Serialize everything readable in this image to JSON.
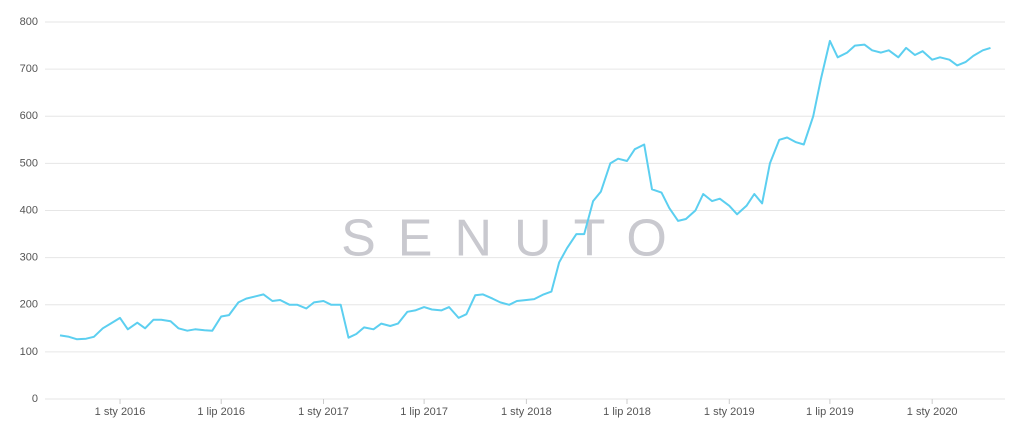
{
  "chart_data": {
    "type": "line",
    "watermark": "SENUTO",
    "x": [
      "2015-09-15",
      "2015-10-01",
      "2015-10-15",
      "2015-11-01",
      "2015-11-15",
      "2015-12-01",
      "2015-12-15",
      "2016-01-01",
      "2016-01-15",
      "2016-02-01",
      "2016-02-15",
      "2016-03-01",
      "2016-03-15",
      "2016-04-01",
      "2016-04-15",
      "2016-05-01",
      "2016-05-15",
      "2016-06-01",
      "2016-06-15",
      "2016-07-01",
      "2016-07-15",
      "2016-08-01",
      "2016-08-15",
      "2016-09-01",
      "2016-09-15",
      "2016-10-01",
      "2016-10-15",
      "2016-11-01",
      "2016-11-15",
      "2016-12-01",
      "2016-12-15",
      "2017-01-01",
      "2017-01-15",
      "2017-02-01",
      "2017-02-15",
      "2017-03-01",
      "2017-03-15",
      "2017-04-01",
      "2017-04-15",
      "2017-05-01",
      "2017-05-15",
      "2017-06-01",
      "2017-06-15",
      "2017-07-01",
      "2017-07-15",
      "2017-08-01",
      "2017-08-15",
      "2017-09-01",
      "2017-09-15",
      "2017-10-01",
      "2017-10-15",
      "2017-11-01",
      "2017-11-15",
      "2017-12-01",
      "2017-12-15",
      "2018-01-01",
      "2018-01-15",
      "2018-02-01",
      "2018-02-15",
      "2018-03-01",
      "2018-03-15",
      "2018-04-01",
      "2018-04-15",
      "2018-05-01",
      "2018-05-15",
      "2018-06-01",
      "2018-06-15",
      "2018-07-01",
      "2018-07-15",
      "2018-08-01",
      "2018-08-15",
      "2018-09-01",
      "2018-09-15",
      "2018-10-01",
      "2018-10-15",
      "2018-11-01",
      "2018-11-15",
      "2018-12-01",
      "2018-12-15",
      "2019-01-01",
      "2019-01-15",
      "2019-02-01",
      "2019-02-15",
      "2019-03-01",
      "2019-03-15",
      "2019-04-01",
      "2019-04-15",
      "2019-05-01",
      "2019-05-15",
      "2019-06-01",
      "2019-06-15",
      "2019-07-01",
      "2019-07-15",
      "2019-08-01",
      "2019-08-15",
      "2019-09-01",
      "2019-09-15",
      "2019-10-01",
      "2019-10-15",
      "2019-11-01",
      "2019-11-15",
      "2019-12-01",
      "2019-12-15",
      "2020-01-01",
      "2020-01-15",
      "2020-02-01",
      "2020-02-15",
      "2020-03-01",
      "2020-03-15",
      "2020-04-01",
      "2020-04-15"
    ],
    "series": [
      {
        "color": "#5ccff0",
        "values": [
          135,
          132,
          127,
          128,
          132,
          150,
          160,
          172,
          148,
          162,
          150,
          168,
          168,
          165,
          150,
          145,
          148,
          146,
          145,
          175,
          178,
          205,
          213,
          218,
          222,
          208,
          210,
          200,
          200,
          192,
          205,
          208,
          200,
          200,
          130,
          138,
          152,
          148,
          160,
          155,
          160,
          185,
          188,
          195,
          190,
          188,
          195,
          172,
          180,
          220,
          222,
          213,
          205,
          200,
          208,
          210,
          212,
          222,
          228,
          290,
          320,
          350,
          350,
          420,
          440,
          500,
          510,
          505,
          530,
          540,
          445,
          438,
          405,
          378,
          382,
          400,
          435,
          420,
          425,
          410,
          392,
          410,
          435,
          415,
          500,
          550,
          555,
          545,
          540,
          600,
          680,
          760,
          725,
          735,
          750,
          752,
          740,
          735,
          740,
          725,
          745,
          730,
          738,
          720,
          725,
          720,
          708,
          715,
          728,
          740,
          745
        ]
      }
    ],
    "xlim": [
      "2015-08-19",
      "2020-05-11"
    ],
    "xticks": [
      {
        "value": "2016-01-01",
        "label": "1 sty 2016"
      },
      {
        "value": "2016-07-01",
        "label": "1 lip 2016"
      },
      {
        "value": "2017-01-01",
        "label": "1 sty 2017"
      },
      {
        "value": "2017-07-01",
        "label": "1 lip 2017"
      },
      {
        "value": "2018-01-01",
        "label": "1 sty 2018"
      },
      {
        "value": "2018-07-01",
        "label": "1 lip 2018"
      },
      {
        "value": "2019-01-01",
        "label": "1 sty 2019"
      },
      {
        "value": "2019-07-01",
        "label": "1 lip 2019"
      },
      {
        "value": "2020-01-01",
        "label": "1 sty 2020"
      }
    ],
    "ylim": [
      0,
      800
    ],
    "yticks": [
      0,
      100,
      200,
      300,
      400,
      500,
      600,
      700,
      800
    ],
    "grid": true
  }
}
